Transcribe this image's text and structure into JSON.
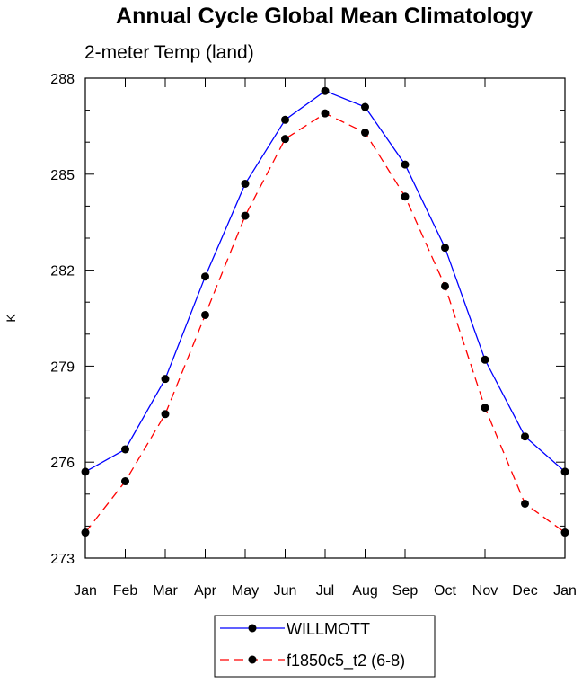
{
  "chart_data": {
    "type": "line",
    "title": "Annual Cycle Global Mean Climatology",
    "subtitle": "2-meter Temp (land)",
    "xlabel": "",
    "ylabel": "K",
    "categories": [
      "Jan",
      "Feb",
      "Mar",
      "Apr",
      "May",
      "Jun",
      "Jul",
      "Aug",
      "Sep",
      "Oct",
      "Nov",
      "Dec",
      "Jan"
    ],
    "ylim": [
      273,
      288
    ],
    "yticks": [
      273,
      276,
      279,
      282,
      285,
      288
    ],
    "grid": false,
    "legend_position": "bottom",
    "series": [
      {
        "name": "WILLMOTT",
        "color": "#0000ff",
        "line_style": "solid",
        "marker": "filled-circle",
        "values": [
          275.7,
          276.4,
          278.6,
          281.8,
          284.7,
          286.7,
          287.6,
          287.1,
          285.3,
          282.7,
          279.2,
          276.8,
          275.7
        ]
      },
      {
        "name": "f1850c5_t2 (6-8)",
        "color": "#ff0000",
        "line_style": "dashed",
        "marker": "filled-circle",
        "values": [
          273.8,
          275.4,
          277.5,
          280.6,
          283.7,
          286.1,
          286.9,
          286.3,
          284.3,
          281.5,
          277.7,
          274.7,
          273.8
        ]
      }
    ]
  }
}
